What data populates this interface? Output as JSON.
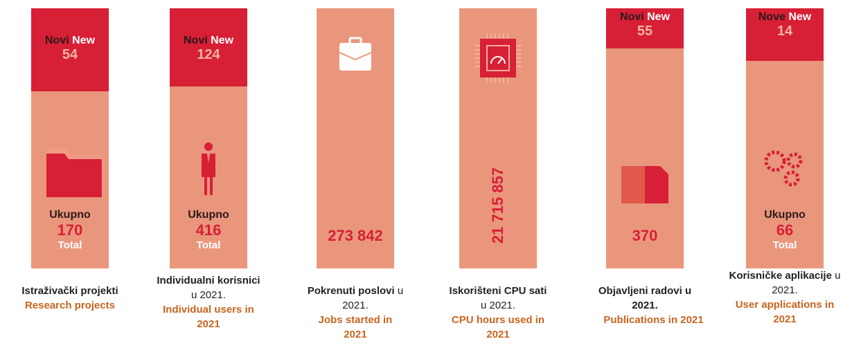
{
  "columns": [
    {
      "new_label": "Novi",
      "new_word": "New",
      "new_value": "54",
      "total_label": "Ukupno",
      "total_value": "170",
      "total_word": "Total",
      "title": "Istraživački projekti",
      "english": "Research projects"
    },
    {
      "new_label": "Novi",
      "new_word": "New",
      "new_value": "124",
      "total_label": "Ukupno",
      "total_value": "416",
      "total_word": "Total",
      "title": "Individualni korisnici",
      "year": "u 2021.",
      "english": "Individual users in 2021"
    },
    {
      "total_value": "273 842",
      "title": "Pokrenuti poslovi",
      "year": "u 2021.",
      "english": "Jobs started in 2021"
    },
    {
      "total_value": "21 715 857",
      "title": "Iskorišteni CPU sati",
      "year": "u 2021.",
      "english": "CPU hours used in 2021"
    },
    {
      "new_label": "Novi",
      "new_word": "New",
      "new_value": "55",
      "total_value": "370",
      "title": "Objavljeni radovi",
      "year": "u 2021.",
      "english": "Publications in 2021"
    },
    {
      "new_label": "Nove",
      "new_word": "New",
      "new_value": "14",
      "total_label": "Ukupno",
      "total_value": "66",
      "total_word": "Total",
      "title": "Korisničke aplikacije",
      "year": "u 2021.",
      "english": "User applications in 2021"
    }
  ]
}
